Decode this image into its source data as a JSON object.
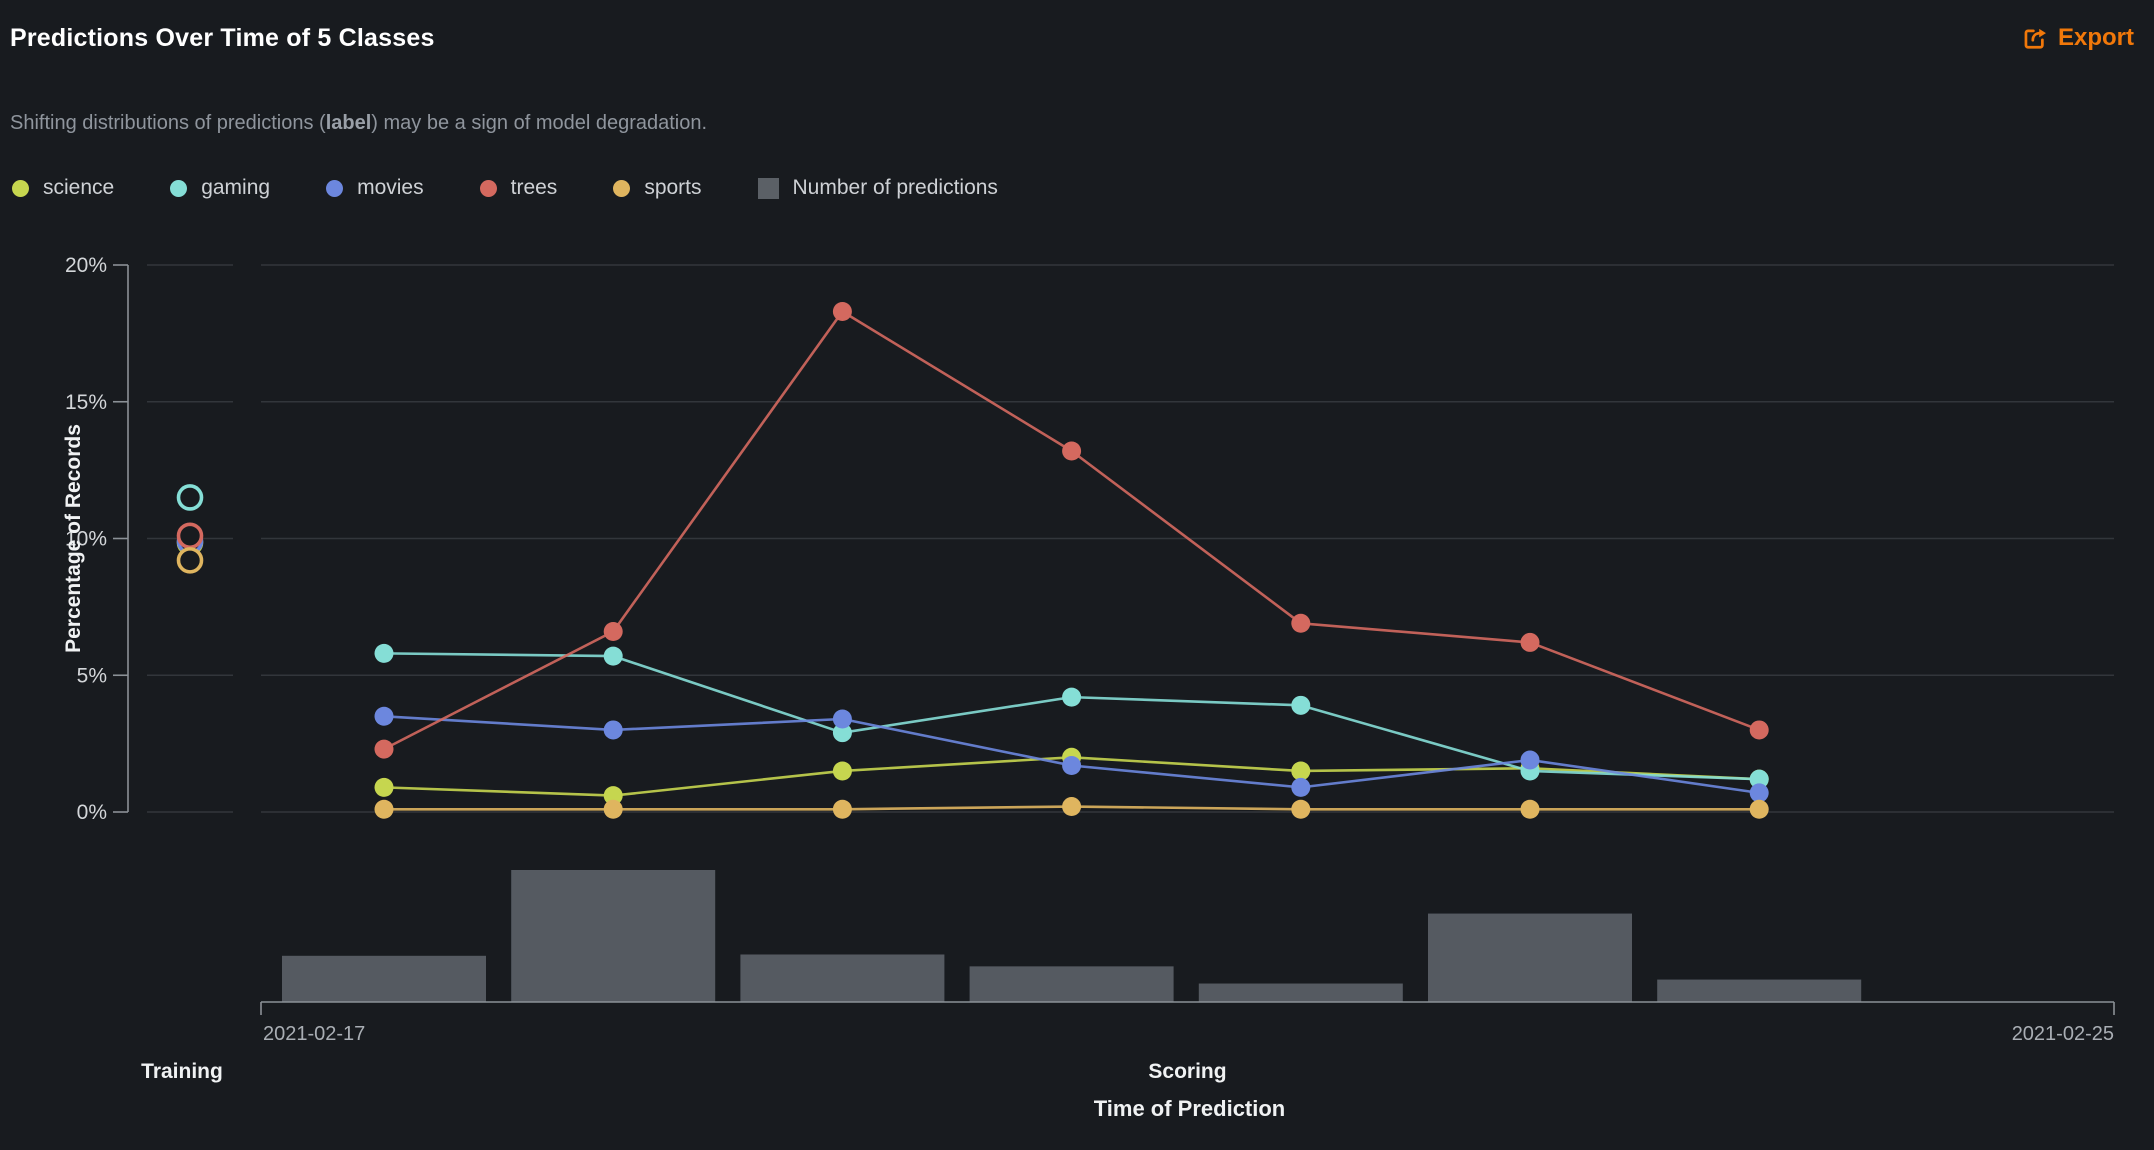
{
  "header": {
    "title": "Predictions Over Time of 5 Classes",
    "export_label": "Export"
  },
  "subtitle": {
    "prefix": "Shifting distributions of predictions (",
    "emphasis": "label",
    "suffix": ") may be a sign of model degradation."
  },
  "colors": {
    "background": "#181b1f",
    "grid": "#32363b",
    "axis": "#8b9197",
    "tick_label": "#d3d6d9",
    "date_label": "#a9aeb4",
    "section_label": "#f0f2f3",
    "subtitle_text": "#8f959d",
    "legend_text": "#ced1d5",
    "export_orange": "#f1780a",
    "bar": "#555a61",
    "legend_square": "#5b6066"
  },
  "chart_data": {
    "type": "line+bar",
    "title": "Predictions Over Time of 5 Classes",
    "x_axis": {
      "title": "Time of Prediction",
      "tick_labels": [
        "2021-02-17",
        "2021-02-25"
      ],
      "sections": [
        "Training",
        "Scoring"
      ],
      "num_scoring_points": 7
    },
    "y_axis": {
      "title": "Percentage of Records",
      "tick_labels": [
        "0%",
        "5%",
        "10%",
        "15%",
        "20%"
      ],
      "min": 0,
      "max": 20,
      "unit": "%"
    },
    "series": [
      {
        "name": "science",
        "color": "#c6d64f",
        "training_value": 9.85,
        "scoring_values": [
          0.9,
          0.6,
          1.5,
          2.0,
          1.5,
          1.6,
          1.2
        ]
      },
      {
        "name": "gaming",
        "color": "#85ded6",
        "training_value": 11.5,
        "scoring_values": [
          5.8,
          5.7,
          2.9,
          4.2,
          3.9,
          1.5,
          1.2
        ]
      },
      {
        "name": "movies",
        "color": "#6c87de",
        "training_value": 9.9,
        "scoring_values": [
          3.5,
          3.0,
          3.4,
          1.7,
          0.9,
          1.9,
          0.7
        ]
      },
      {
        "name": "trees",
        "color": "#d4695f",
        "training_value": 10.1,
        "scoring_values": [
          2.3,
          6.6,
          18.3,
          13.2,
          6.9,
          6.2,
          3.0
        ]
      },
      {
        "name": "sports",
        "color": "#dfb55f",
        "training_value": 9.2,
        "scoring_values": [
          0.1,
          0.1,
          0.1,
          0.2,
          0.1,
          0.1,
          0.1
        ]
      }
    ],
    "bars": {
      "name": "Number of predictions",
      "color": "#555a61",
      "values_relative": [
        0.35,
        1.0,
        0.36,
        0.27,
        0.14,
        0.67,
        0.17
      ]
    },
    "legend_position": "top",
    "grid": true
  }
}
